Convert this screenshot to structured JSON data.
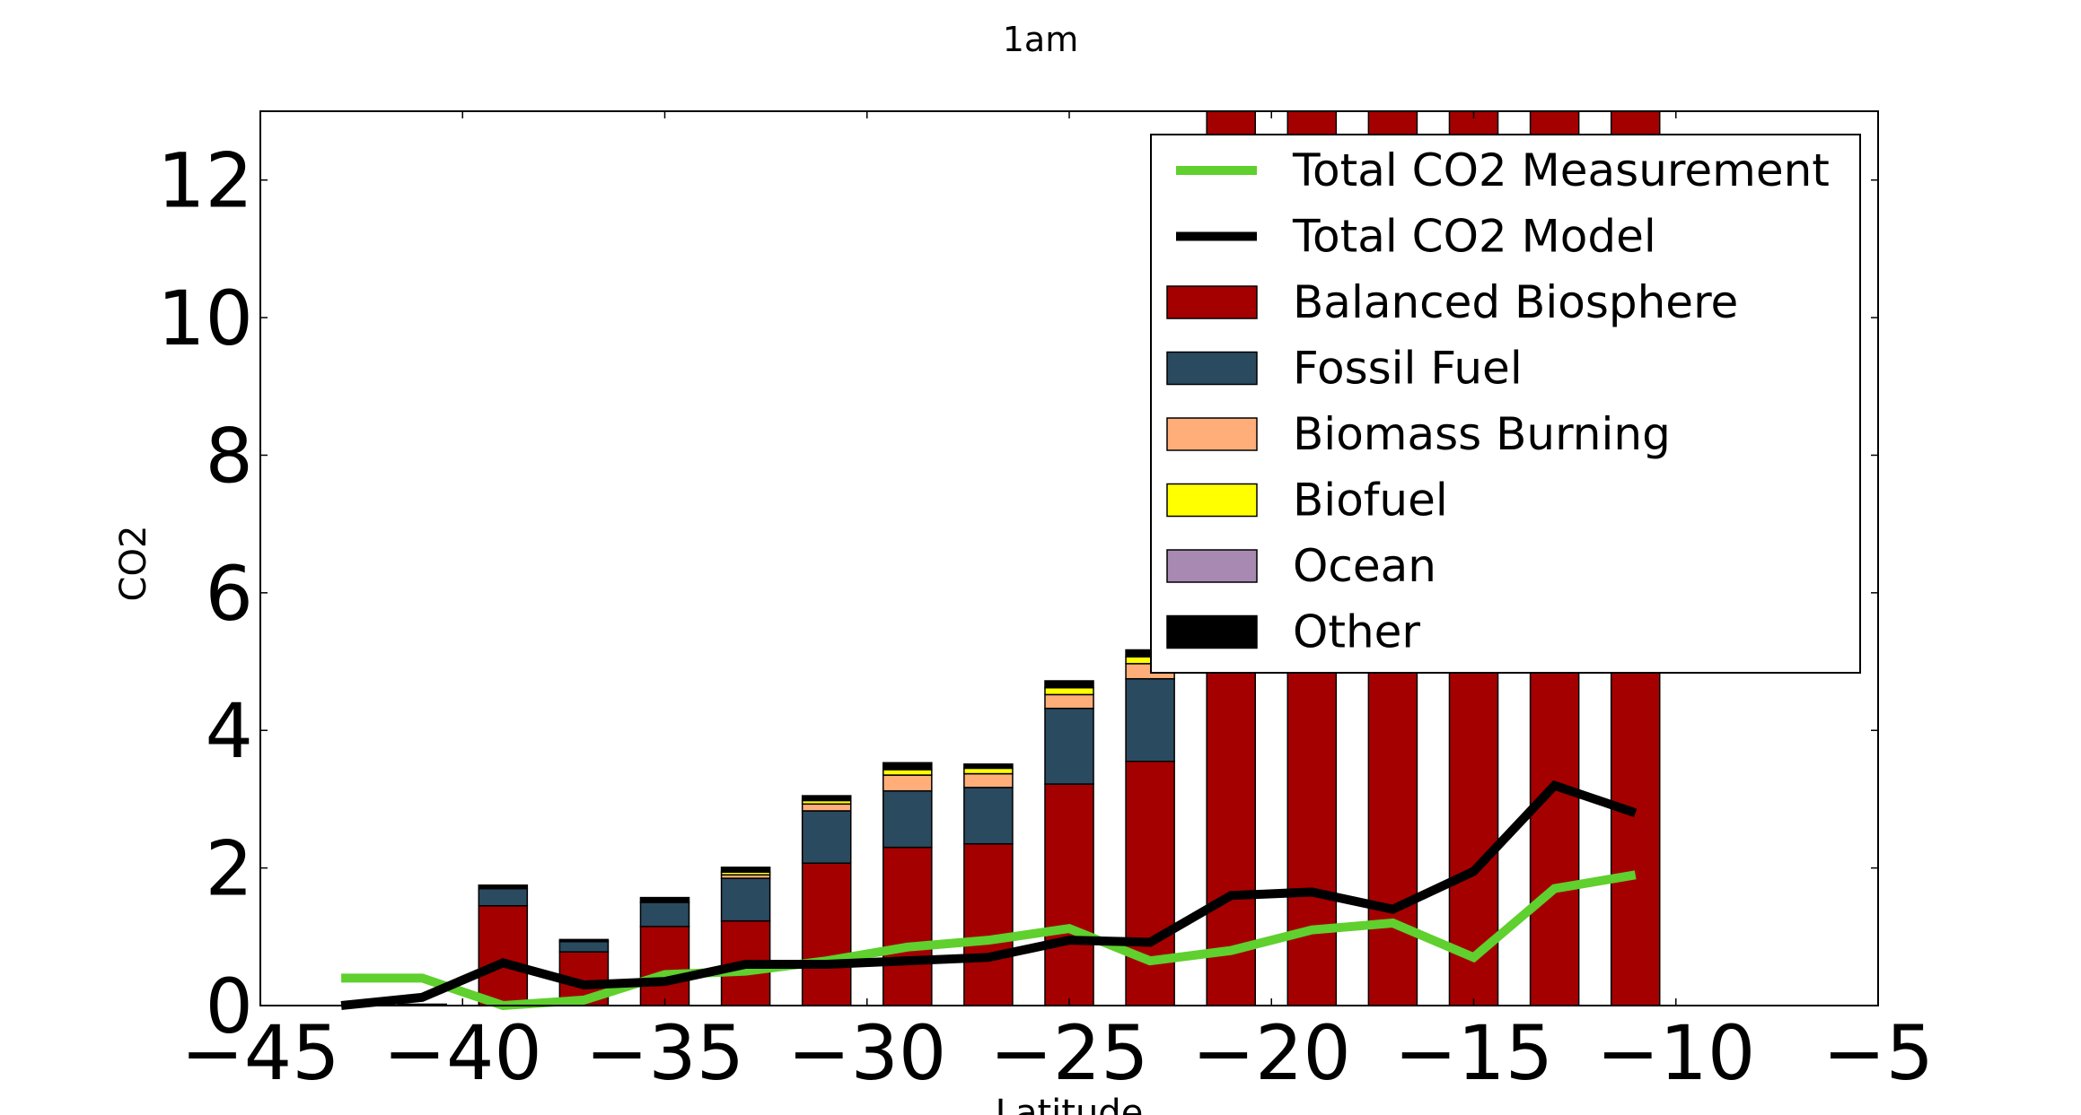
{
  "chart_data": {
    "type": "bar",
    "title": "1am",
    "xlabel": "Latitude",
    "ylabel": "CO2",
    "xlim": [
      -45,
      -5
    ],
    "ylim": [
      0,
      13
    ],
    "xticks": [
      -45,
      -40,
      -35,
      -30,
      -25,
      -20,
      -15,
      -10,
      -5
    ],
    "yticks": [
      0,
      2,
      4,
      6,
      8,
      10,
      12
    ],
    "x_tick_labels": [
      "−45",
      "−40",
      "−35",
      "−30",
      "−25",
      "−20",
      "−15",
      "−10",
      "−5"
    ],
    "y_tick_labels": [
      "0",
      "2",
      "4",
      "6",
      "8",
      "10",
      "12"
    ],
    "grid": false,
    "legend_position": "upper right",
    "x": [
      -43,
      -41,
      -39,
      -37,
      -35,
      -33,
      -31,
      -29,
      -27,
      -25,
      -23,
      -21,
      -19,
      -17,
      -15,
      -13,
      -11
    ],
    "series": [
      {
        "name": "Balanced Biosphere",
        "color": "#a50000",
        "values": [
          0,
          0.02,
          1.45,
          0.78,
          1.15,
          1.23,
          2.07,
          2.3,
          2.35,
          3.22,
          3.55,
          13,
          13,
          13,
          13,
          13,
          13
        ]
      },
      {
        "name": "Fossil Fuel",
        "color": "#2a4a60",
        "values": [
          0,
          0,
          0.25,
          0.15,
          0.35,
          0.62,
          0.76,
          0.82,
          0.82,
          1.1,
          1.2,
          0,
          0,
          0,
          0,
          0,
          0
        ]
      },
      {
        "name": "Biomass Burning",
        "color": "#ffae7a",
        "values": [
          0,
          0,
          0,
          0,
          0,
          0.05,
          0.1,
          0.23,
          0.2,
          0.2,
          0.22,
          0,
          0,
          0,
          0,
          0,
          0
        ]
      },
      {
        "name": "Biofuel",
        "color": "#ffff00",
        "values": [
          0,
          0,
          0,
          0,
          0,
          0.04,
          0.05,
          0.08,
          0.08,
          0.1,
          0.1,
          0,
          0,
          0,
          0,
          0,
          0
        ]
      },
      {
        "name": "Ocean",
        "color": "#a889b2",
        "values": [
          0,
          0,
          0,
          0,
          0,
          0,
          0,
          0,
          0,
          0,
          0,
          0,
          0,
          0,
          0,
          0,
          0
        ]
      },
      {
        "name": "Other",
        "color": "#000000",
        "values": [
          0,
          0,
          0.05,
          0.03,
          0.07,
          0.07,
          0.07,
          0.1,
          0.06,
          0.1,
          0.1,
          0,
          0,
          0,
          0,
          0,
          0
        ]
      }
    ],
    "lines": [
      {
        "name": "Total CO2 Measurement",
        "color": "#5fd02e",
        "x": [
          -43,
          -41,
          -39,
          -37,
          -35,
          -33,
          -31,
          -29,
          -27,
          -25,
          -23,
          -21,
          -19,
          -17,
          -15,
          -13,
          -11
        ],
        "y": [
          0.4,
          0.4,
          0.0,
          0.08,
          0.45,
          0.5,
          0.65,
          0.85,
          0.95,
          1.12,
          0.65,
          0.8,
          1.1,
          1.2,
          0.7,
          1.7,
          1.9
        ]
      },
      {
        "name": "Total CO2 Model",
        "color": "#000000",
        "x": [
          -43,
          -41,
          -39,
          -37,
          -35,
          -33,
          -31,
          -29,
          -27,
          -25,
          -23,
          -21,
          -19,
          -17,
          -15,
          -13,
          -11
        ],
        "y": [
          0.0,
          0.12,
          0.62,
          0.3,
          0.35,
          0.6,
          0.6,
          0.65,
          0.7,
          0.95,
          0.92,
          1.6,
          1.65,
          1.4,
          1.95,
          3.2,
          2.8
        ]
      }
    ],
    "legend": [
      {
        "label": "Total CO2 Measurement",
        "kind": "line",
        "color": "#5fd02e"
      },
      {
        "label": "Total CO2 Model",
        "kind": "line",
        "color": "#000000"
      },
      {
        "label": "Balanced Biosphere",
        "kind": "patch",
        "color": "#a50000"
      },
      {
        "label": "Fossil Fuel",
        "kind": "patch",
        "color": "#2a4a60"
      },
      {
        "label": "Biomass Burning",
        "kind": "patch",
        "color": "#ffae7a"
      },
      {
        "label": "Biofuel",
        "kind": "patch",
        "color": "#ffff00"
      },
      {
        "label": "Ocean",
        "kind": "patch",
        "color": "#a889b2"
      },
      {
        "label": "Other",
        "kind": "patch",
        "color": "#000000"
      }
    ]
  }
}
